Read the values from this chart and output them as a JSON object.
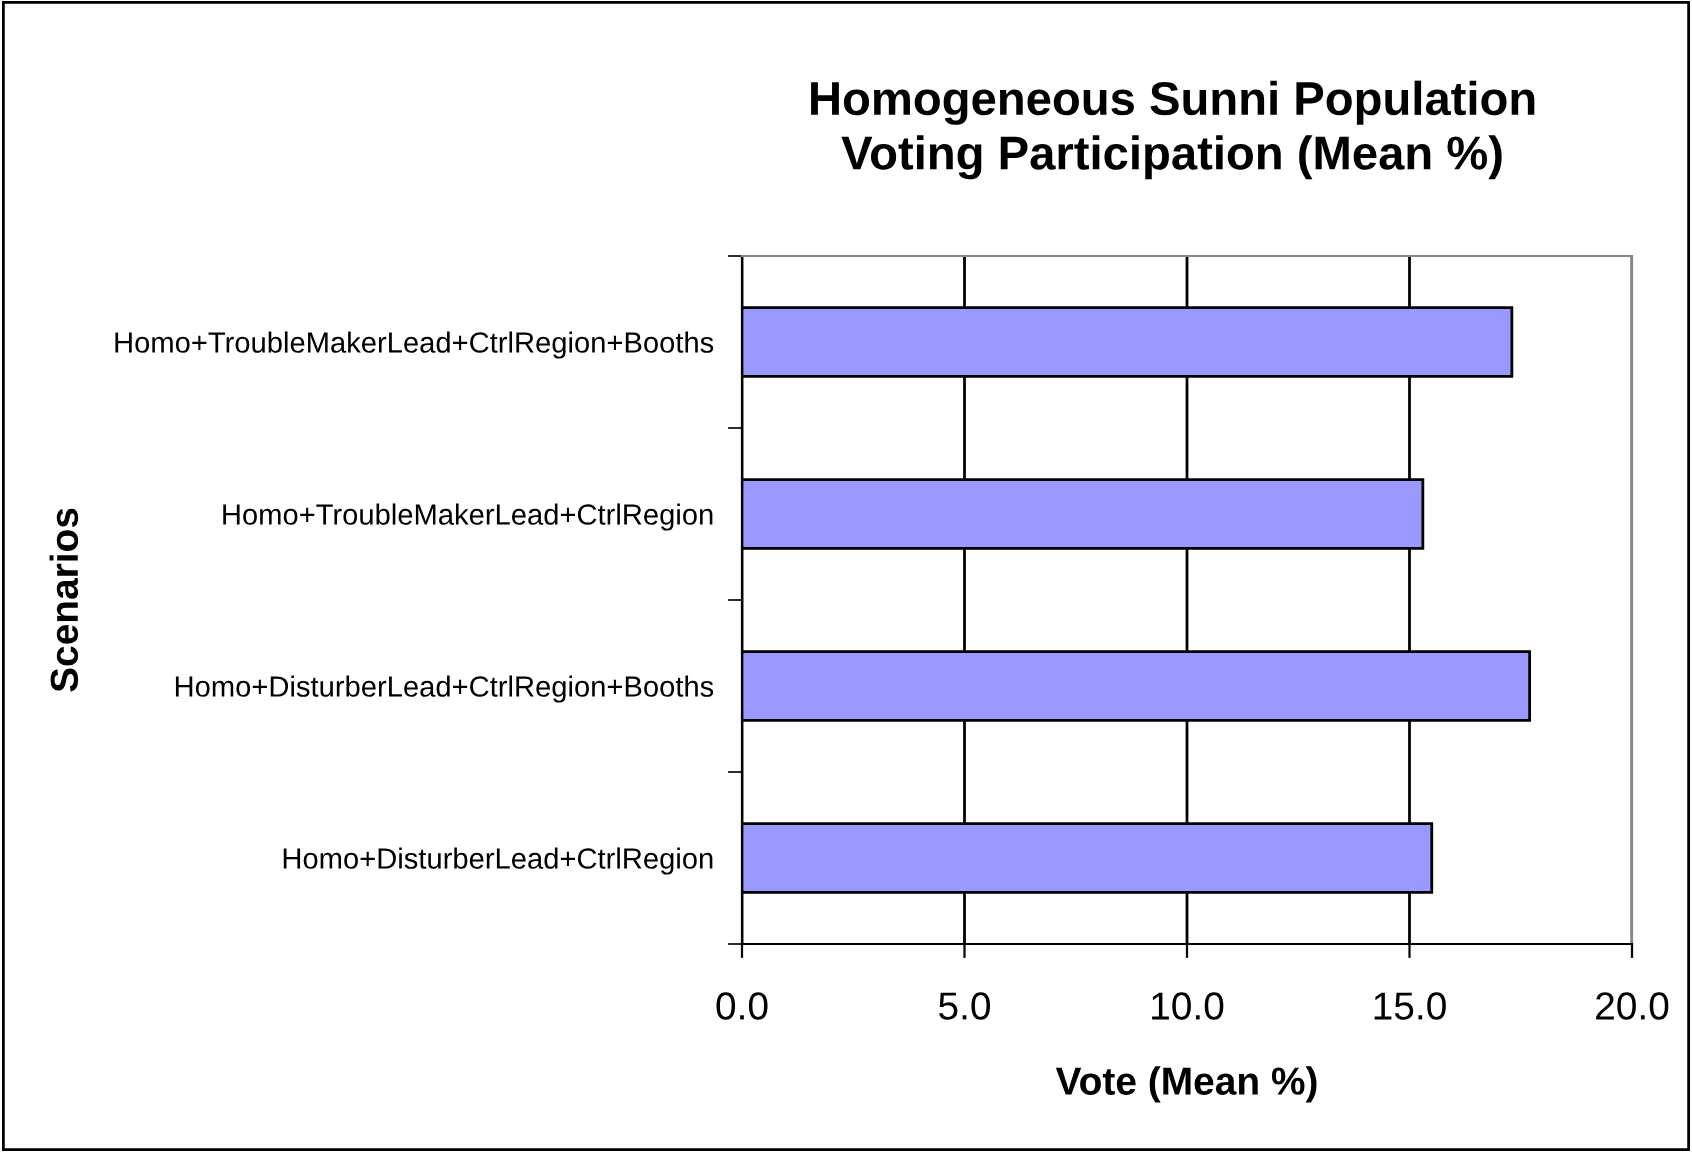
{
  "chart_data": {
    "type": "bar",
    "orientation": "horizontal",
    "title": "Homogeneous Sunni Population\nVoting Participation (Mean %)",
    "xlabel": "Vote (Mean %)",
    "ylabel": "Scenarios",
    "categories": [
      "Homo+TroubleMakerLead+CtrlRegion+Booths",
      "Homo+TroubleMakerLead+CtrlRegion",
      "Homo+DisturberLead+CtrlRegion+Booths",
      "Homo+DisturberLead+CtrlRegion"
    ],
    "values": [
      17.3,
      15.3,
      17.7,
      15.5
    ],
    "color": "#9999ff",
    "xlim": [
      0,
      20
    ],
    "xticks": [
      {
        "value": 0,
        "label": "0.0"
      },
      {
        "value": 5,
        "label": "5.0"
      },
      {
        "value": 10,
        "label": "10.0"
      },
      {
        "value": 15,
        "label": "15.0"
      },
      {
        "value": 20,
        "label": "20.0"
      }
    ],
    "grid": "x"
  }
}
